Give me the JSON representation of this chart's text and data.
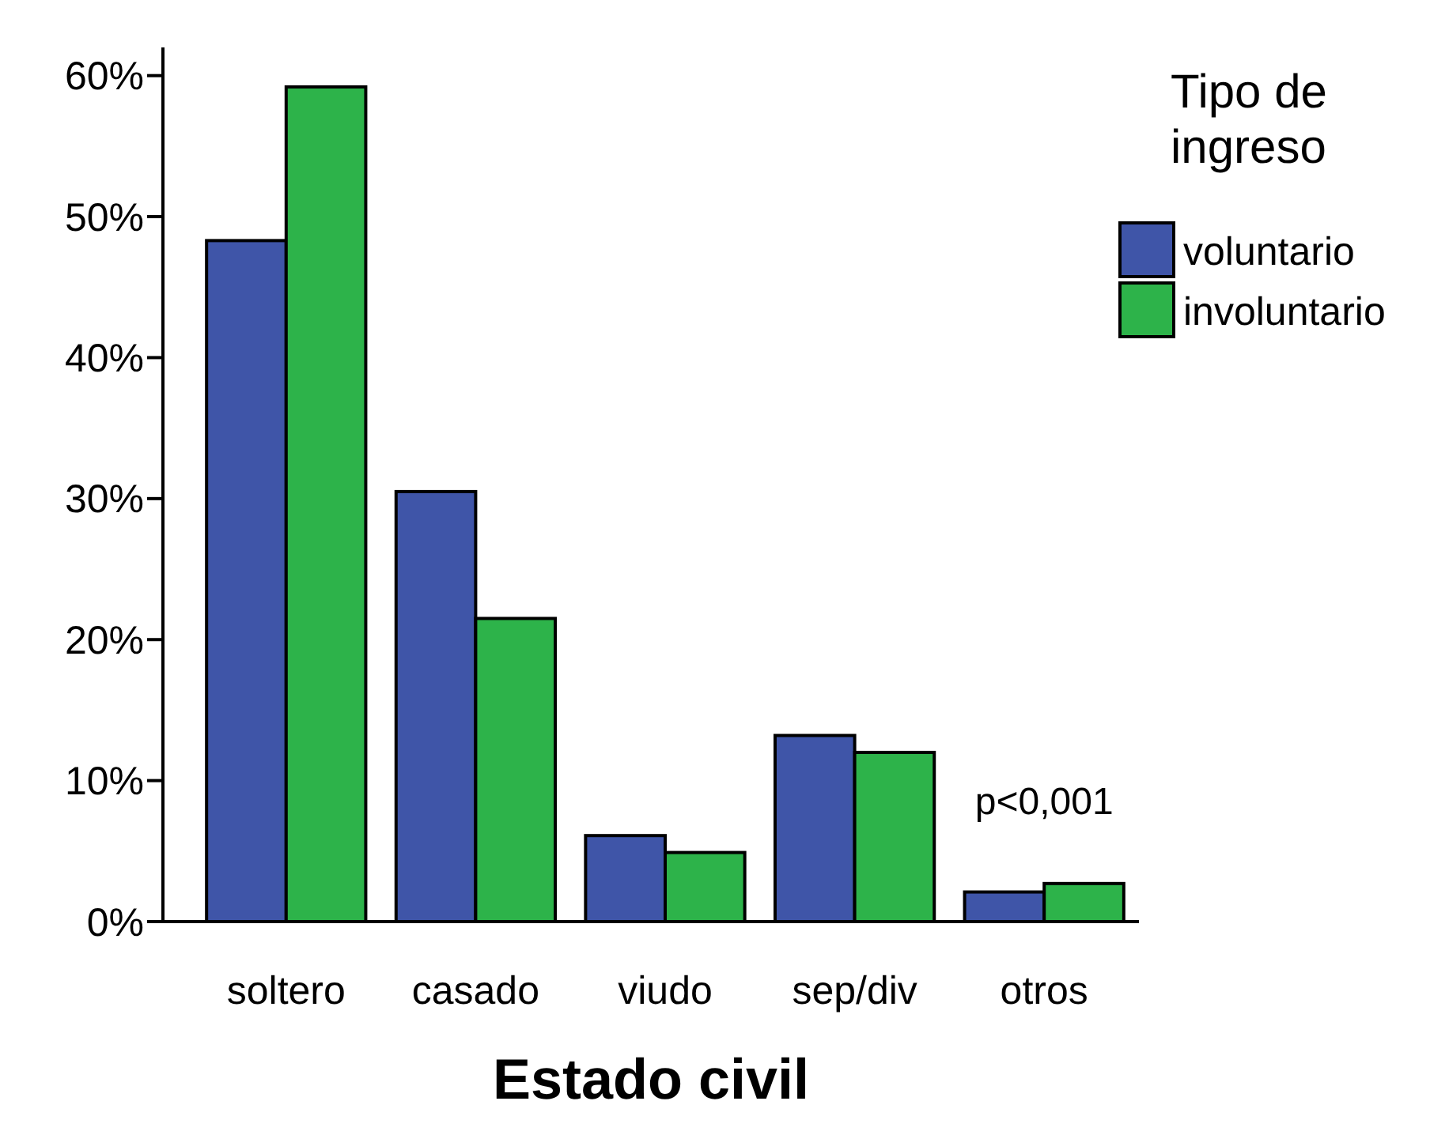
{
  "chart_data": {
    "type": "bar",
    "xlabel": "Estado civil",
    "legend_title": "Tipo de ingreso",
    "legend": "right",
    "categories": [
      "soltero",
      "casado",
      "viudo",
      "sep/div",
      "otros"
    ],
    "series": [
      {
        "name": "voluntario",
        "color": "#3f55a8",
        "values": [
          48.3,
          30.5,
          6.1,
          13.2,
          2.1
        ]
      },
      {
        "name": "involuntario",
        "color": "#2db34a",
        "values": [
          59.2,
          21.5,
          4.9,
          12.0,
          2.7
        ]
      }
    ],
    "ylim": [
      0,
      62
    ],
    "yticks": [
      {
        "value": 0,
        "label": "0%"
      },
      {
        "value": 10,
        "label": "10%"
      },
      {
        "value": 20,
        "label": "20%"
      },
      {
        "value": 30,
        "label": "30%"
      },
      {
        "value": 40,
        "label": "40%"
      },
      {
        "value": 50,
        "label": "50%"
      },
      {
        "value": 60,
        "label": "60%"
      }
    ],
    "annotations": [
      "p<0,001"
    ]
  }
}
